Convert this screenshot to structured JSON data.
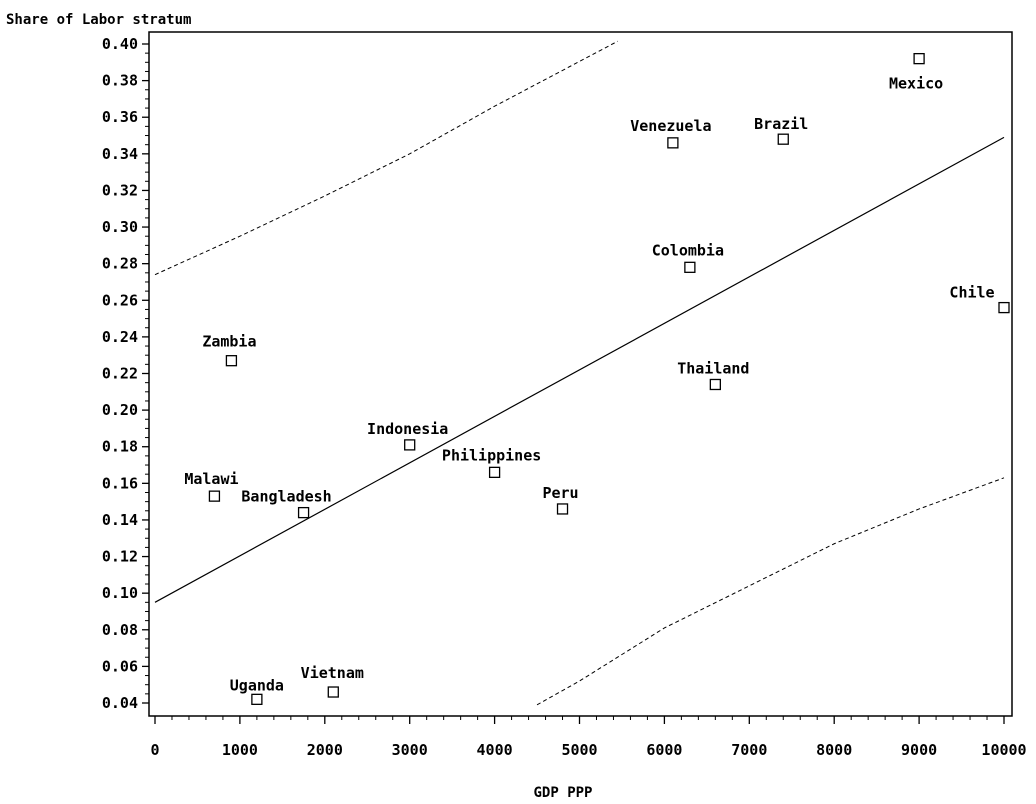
{
  "chart_data": {
    "type": "scatter",
    "title": "",
    "ylabel": "Share of Labor stratum",
    "xlabel": "GDP PPP",
    "xlim": [
      0,
      10000
    ],
    "ylim": [
      0.035,
      0.405
    ],
    "x_ticks": [
      "0",
      "1000",
      "2000",
      "3000",
      "4000",
      "5000",
      "6000",
      "7000",
      "8000",
      "9000",
      "10000"
    ],
    "y_ticks": [
      "0.04",
      "0.06",
      "0.08",
      "0.10",
      "0.12",
      "0.14",
      "0.16",
      "0.18",
      "0.20",
      "0.22",
      "0.24",
      "0.26",
      "0.28",
      "0.30",
      "0.32",
      "0.34",
      "0.36",
      "0.38",
      "0.40"
    ],
    "grid": false,
    "marker": "open-square",
    "points": [
      {
        "label": "Mexico",
        "x": 9000,
        "y": 0.392
      },
      {
        "label": "Venezuela",
        "x": 6100,
        "y": 0.346
      },
      {
        "label": "Brazil",
        "x": 7400,
        "y": 0.348
      },
      {
        "label": "Colombia",
        "x": 6300,
        "y": 0.278
      },
      {
        "label": "Chile",
        "x": 10000,
        "y": 0.256
      },
      {
        "label": "Zambia",
        "x": 900,
        "y": 0.227
      },
      {
        "label": "Thailand",
        "x": 6600,
        "y": 0.214
      },
      {
        "label": "Indonesia",
        "x": 3000,
        "y": 0.181
      },
      {
        "label": "Philippines",
        "x": 4000,
        "y": 0.166
      },
      {
        "label": "Malawi",
        "x": 700,
        "y": 0.153
      },
      {
        "label": "Bangladesh",
        "x": 1750,
        "y": 0.144
      },
      {
        "label": "Peru",
        "x": 4800,
        "y": 0.146
      },
      {
        "label": "Uganda",
        "x": 1200,
        "y": 0.042
      },
      {
        "label": "Vietnam",
        "x": 2100,
        "y": 0.046
      }
    ],
    "fit_line": {
      "x": [
        0,
        10000
      ],
      "y": [
        0.095,
        0.349
      ]
    },
    "upper_band": {
      "x": [
        0,
        1000,
        2000,
        3000,
        4000,
        5450
      ],
      "y": [
        0.274,
        0.295,
        0.317,
        0.34,
        0.366,
        0.4015
      ]
    },
    "lower_band": {
      "x": [
        4500,
        5000,
        6000,
        7000,
        8000,
        9000,
        10000
      ],
      "y": [
        0.039,
        0.052,
        0.081,
        0.104,
        0.127,
        0.146,
        0.163
      ]
    }
  }
}
